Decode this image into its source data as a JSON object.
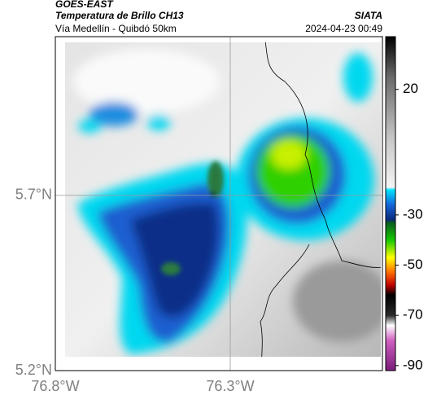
{
  "header": {
    "source": "GOES-EAST",
    "title": "Temperatura de Brillo CH13",
    "subtitle": "Vía Medellín - Quibdó 50km",
    "agency": "SIATA",
    "datetime": "2024-04-23 00:49"
  },
  "map": {
    "xlim": [
      -76.8,
      -75.865
    ],
    "ylim": [
      5.2,
      6.153
    ],
    "xticks": [
      {
        "value": -76.8,
        "label": "76.8°W"
      },
      {
        "value": -76.3,
        "label": "76.3°W"
      }
    ],
    "yticks": [
      {
        "value": 5.2,
        "label": "5.2°N"
      },
      {
        "value": 5.7,
        "label": "5.7°N"
      }
    ],
    "grid": true
  },
  "colorbar": {
    "lim": [
      -92,
      41
    ],
    "ticks": [
      20,
      -30,
      -50,
      -70,
      -90
    ],
    "colors": [
      {
        "value": 41,
        "color": "#000000"
      },
      {
        "value": 25,
        "color": "#6a6a6a"
      },
      {
        "value": 0,
        "color": "#c8c8c8"
      },
      {
        "value": -19,
        "color": "#f4f4f4"
      },
      {
        "value": -20,
        "color": "#00e5ff"
      },
      {
        "value": -26,
        "color": "#1565d8"
      },
      {
        "value": -32,
        "color": "#0a2a7a"
      },
      {
        "value": -33,
        "color": "#0a5a20"
      },
      {
        "value": -40,
        "color": "#16c800"
      },
      {
        "value": -47,
        "color": "#ffff00"
      },
      {
        "value": -53,
        "color": "#ff6a00"
      },
      {
        "value": -58,
        "color": "#c00000"
      },
      {
        "value": -62,
        "color": "#000000"
      },
      {
        "value": -70,
        "color": "#2a2a2a"
      },
      {
        "value": -74,
        "color": "#ffffff"
      },
      {
        "value": -80,
        "color": "#d060c0"
      },
      {
        "value": -92,
        "color": "#7a1a7a"
      }
    ]
  }
}
